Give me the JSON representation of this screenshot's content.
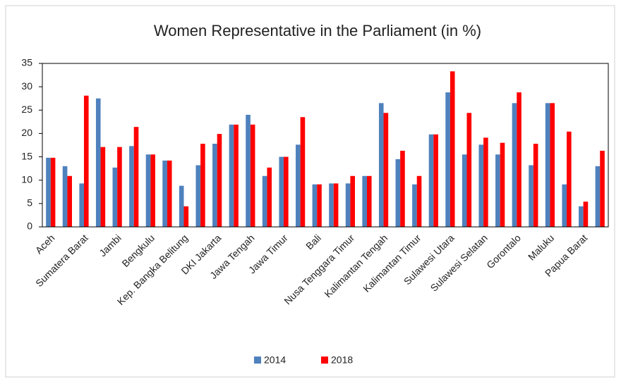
{
  "chart_data": {
    "type": "bar",
    "title": "Women Representative in the Parliament (in %)",
    "categories": [
      "Aceh",
      null,
      "Sumatera Barat",
      null,
      "Jambi",
      null,
      "Bengkulu",
      null,
      "Kep. Bangka Belitung",
      null,
      "DKI Jakarta",
      null,
      "Jawa Tengah",
      null,
      "Jawa Timur",
      null,
      "Bali",
      null,
      "Nusa Tenggara Timur",
      null,
      "Kalimantan Tengah",
      null,
      "Kalimantan Timur",
      null,
      "Sulawesi Utara",
      null,
      "Sulawesi Selatan",
      null,
      "Gorontalo",
      null,
      "Maluku",
      null,
      "Papua Barat",
      null
    ],
    "series": [
      {
        "name": "2014",
        "color": "#4f81bd",
        "values": [
          14.8,
          13,
          9.3,
          27.5,
          12.7,
          17.3,
          15.5,
          14.2,
          8.8,
          13.2,
          17.8,
          21.9,
          24,
          10.9,
          15,
          17.6,
          9.1,
          9.3,
          9.3,
          10.9,
          26.5,
          14.5,
          9.1,
          19.8,
          28.8,
          15.5,
          17.6,
          15.5,
          26.5,
          13.2,
          26.5,
          9.1,
          4.4,
          13
        ]
      },
      {
        "name": "2018",
        "color": "#ff0000",
        "values": [
          14.8,
          10.9,
          28.1,
          17.1,
          17.1,
          21.4,
          15.5,
          14.2,
          4.4,
          17.8,
          19.9,
          21.9,
          21.9,
          12.7,
          15,
          23.5,
          9.1,
          9.3,
          10.9,
          10.9,
          24.4,
          16.3,
          10.9,
          19.8,
          33.3,
          24.4,
          19.1,
          18,
          28.8,
          17.8,
          26.5,
          20.4,
          5.4,
          16.3
        ]
      }
    ],
    "ylim": [
      0,
      35
    ],
    "yticks": [
      0,
      5,
      10,
      15,
      20,
      25,
      30,
      35
    ],
    "grid": false,
    "legend": "bottom"
  }
}
